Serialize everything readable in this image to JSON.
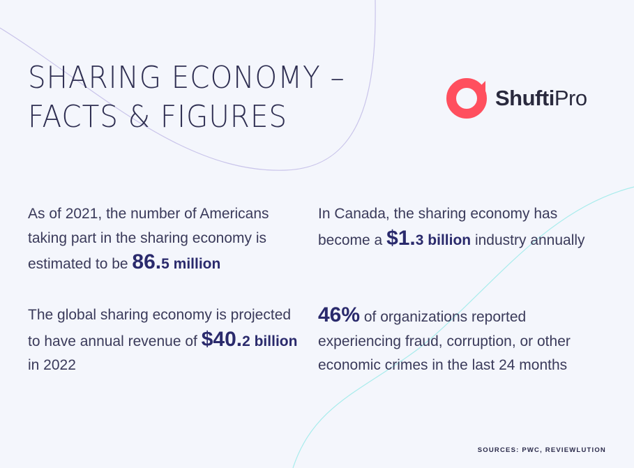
{
  "title": {
    "line1": "SHARING ECONOMY –",
    "line2": "FACTS & FIGURES"
  },
  "logo": {
    "bold": "Shufti",
    "light": "Pro",
    "color": "#ff4f5e"
  },
  "facts": [
    {
      "pre": "As of 2021, the number of Americans taking part in the sharing economy is estimated to be ",
      "big": "86.",
      "med": "5 million",
      "post": ""
    },
    {
      "pre": "In Canada, the sharing economy has become a ",
      "big": "$1.",
      "med": "3 billion",
      "post": " industry annually"
    },
    {
      "pre": "The global sharing economy is projected to have annual revenue of ",
      "big": "$40.",
      "med": "2 billion",
      "post": " in 2022"
    },
    {
      "pre": "",
      "big": "46%",
      "med": "",
      "post": " of organizations reported experiencing fraud, corruption, or other economic crimes in the last 24 months"
    }
  ],
  "sources": "SOURCES: PWC, REVIEWLUTION",
  "colors": {
    "background": "#f4f6fc",
    "accent": "#2a2a6c",
    "curve_purple": "#c9c4ea",
    "curve_cyan": "#a8ecec"
  }
}
